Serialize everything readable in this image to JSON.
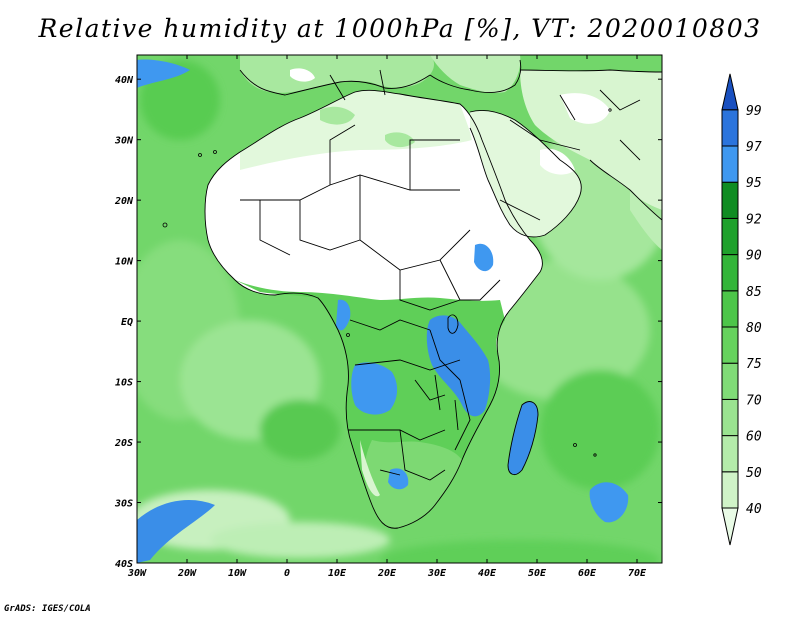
{
  "title": "Relative humidity at 1000hPa [%], VT: 2020010803",
  "credit": "GrADS: IGES/COLA",
  "map": {
    "lon_ticks": [
      "30W",
      "20W",
      "10W",
      "0",
      "10E",
      "20E",
      "30E",
      "40E",
      "50E",
      "60E",
      "70E"
    ],
    "lat_ticks": [
      "40N",
      "30N",
      "20N",
      "10N",
      "EQ",
      "10S",
      "20S",
      "30S",
      "40S"
    ],
    "lon_range": [
      -30,
      75
    ],
    "lat_range": [
      -40,
      44
    ]
  },
  "colorbar": {
    "levels": [
      "40",
      "50",
      "60",
      "70",
      "75",
      "80",
      "85",
      "90",
      "92",
      "95",
      "97",
      "99"
    ],
    "colors": [
      "#e9fbe6",
      "#d0f3c8",
      "#b4ebaa",
      "#9ae390",
      "#80db77",
      "#66d35e",
      "#4cc649",
      "#33b539",
      "#1fa12c",
      "#0f8c22",
      "#3f98f0",
      "#2b74dc",
      "#1950c0"
    ]
  }
}
